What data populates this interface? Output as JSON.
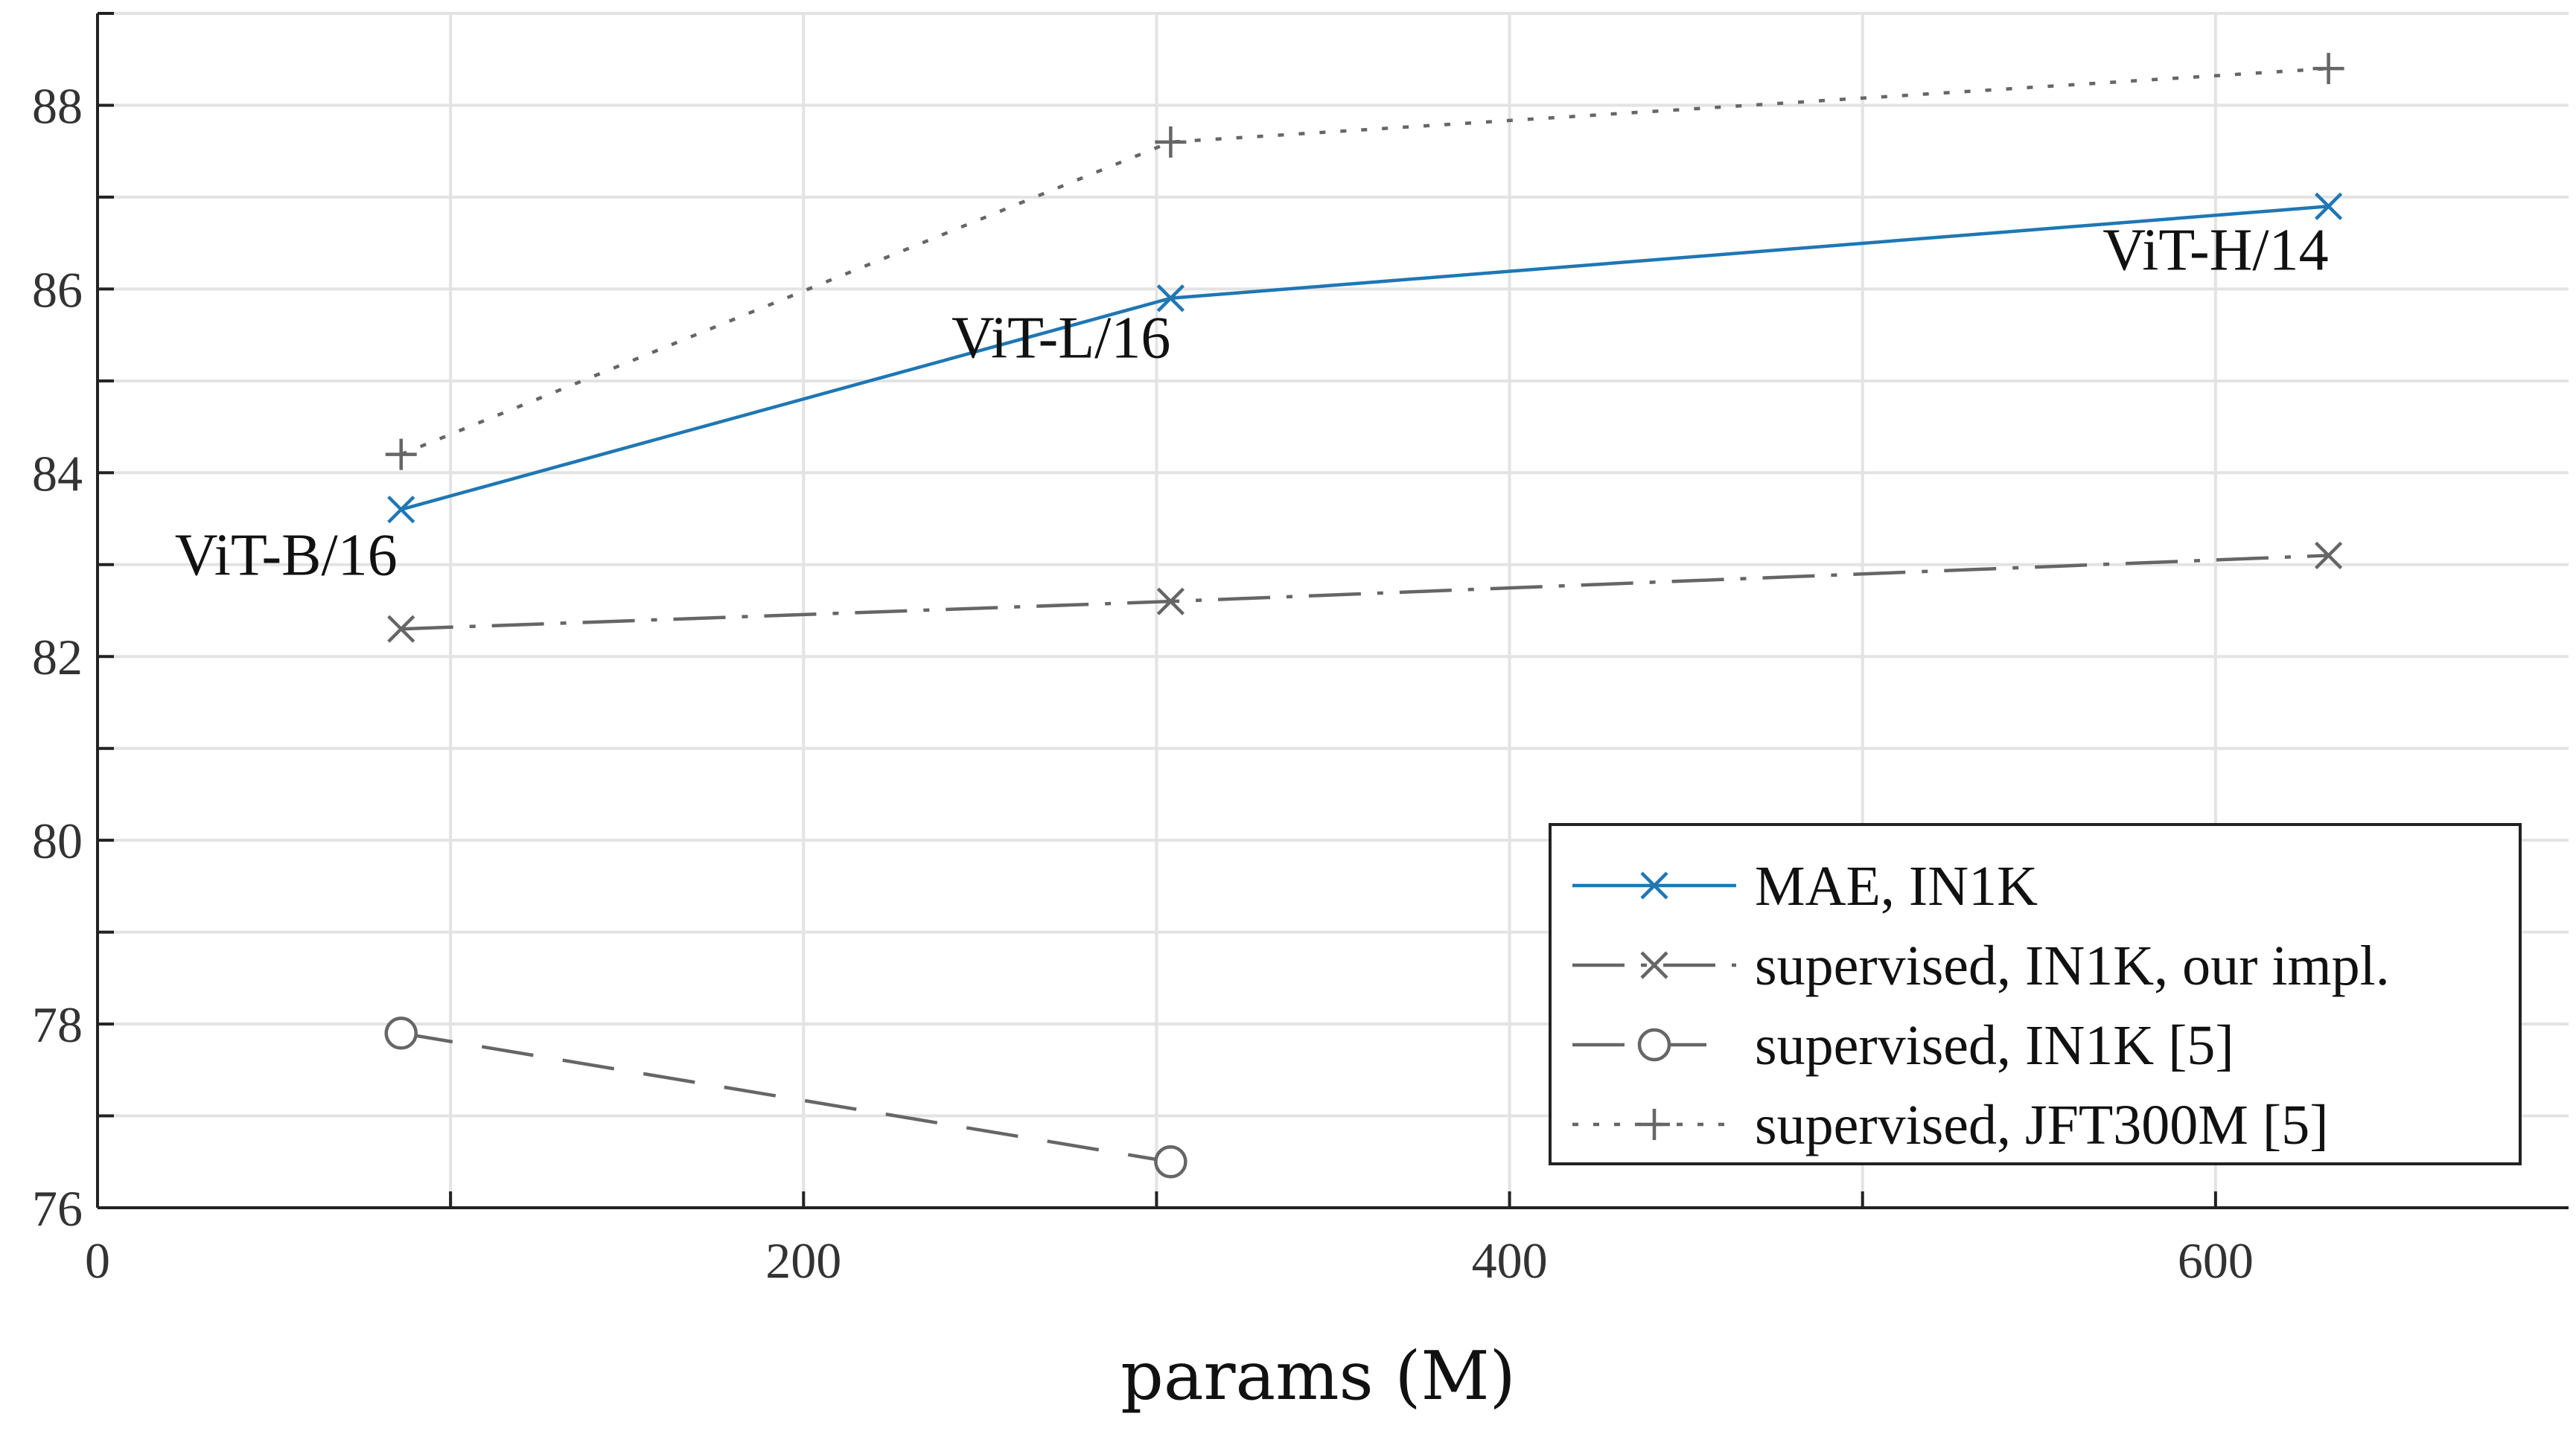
{
  "chart_data": {
    "type": "line",
    "title": "",
    "xlabel": "params (M)",
    "ylabel": "",
    "xlim": [
      0,
      700
    ],
    "ylim": [
      76,
      89
    ],
    "xticks": [
      0,
      200,
      400,
      600
    ],
    "yticks": [
      76,
      78,
      80,
      82,
      84,
      86,
      88
    ],
    "grid": true,
    "legend_position": "bottom-right",
    "series": [
      {
        "name": "MAE, IN1K",
        "color": "#1f77b4",
        "dash": "solid",
        "marker": "x",
        "x": [
          86,
          304,
          632
        ],
        "y": [
          83.6,
          85.9,
          86.9
        ]
      },
      {
        "name": "supervised, IN1K, our impl.",
        "color": "#666666",
        "dash": "dashdot",
        "marker": "x",
        "x": [
          86,
          304,
          632
        ],
        "y": [
          82.3,
          82.6,
          83.1
        ]
      },
      {
        "name": "supervised, IN1K [5]",
        "color": "#666666",
        "dash": "dashed",
        "marker": "circle",
        "x": [
          86,
          304
        ],
        "y": [
          77.9,
          76.5
        ]
      },
      {
        "name": "supervised, JFT300M [5]",
        "color": "#666666",
        "dash": "dotted",
        "marker": "plus",
        "x": [
          86,
          304,
          632
        ],
        "y": [
          84.2,
          87.6,
          88.4
        ]
      }
    ],
    "annotations": [
      {
        "text": "ViT-B/16",
        "x": 86,
        "y": 83.6
      },
      {
        "text": "ViT-L/16",
        "x": 304,
        "y": 85.9
      },
      {
        "text": "ViT-H/14",
        "x": 632,
        "y": 86.9
      }
    ]
  }
}
